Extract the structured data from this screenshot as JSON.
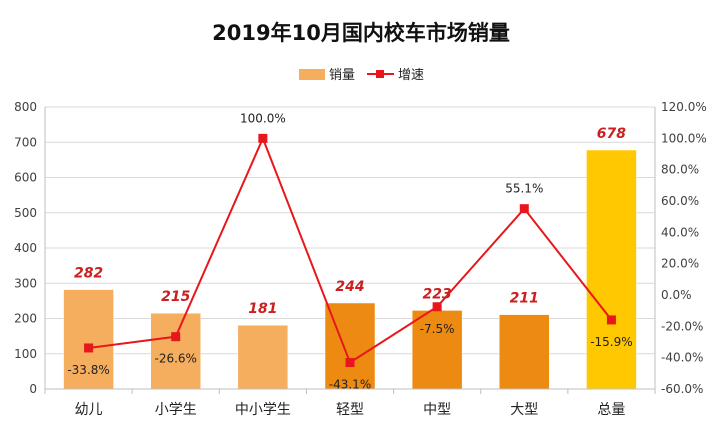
{
  "chart_data": {
    "type": "bar",
    "title": "2019年10月国内校车市场销量",
    "categories": [
      "幼儿",
      "小学生",
      "中小学生",
      "轻型",
      "中型",
      "大型",
      "总量"
    ],
    "series": [
      {
        "name": "销量",
        "type": "bar",
        "axis": "left",
        "values": [
          282,
          215,
          181,
          244,
          223,
          211,
          678
        ],
        "labels": [
          "282",
          "215",
          "181",
          "244",
          "223",
          "211",
          "678"
        ]
      },
      {
        "name": "增速",
        "type": "line",
        "axis": "right",
        "values": [
          -33.8,
          -26.6,
          100.0,
          -43.1,
          -7.5,
          55.1,
          -15.9
        ],
        "labels": [
          "-33.8%",
          "-26.6%",
          "100.0%",
          "-43.1%",
          "-7.5%",
          "55.1%",
          "-15.9%"
        ]
      }
    ],
    "y_left": {
      "min": 0,
      "max": 800,
      "ticks": [
        "0",
        "100",
        "200",
        "300",
        "400",
        "500",
        "600",
        "700",
        "800"
      ]
    },
    "y_right": {
      "min": -60,
      "max": 120,
      "ticks": [
        "-60.0%",
        "-40.0%",
        "-20.0%",
        "0.0%",
        "20.0%",
        "40.0%",
        "60.0%",
        "80.0%",
        "100.0%",
        "120.0%"
      ]
    },
    "legend_position": "top-center",
    "gridlines": true,
    "colors": {
      "bar_group_1": "#f5ad5e",
      "bar_group_2": "#ed8a12",
      "bar_total": "#ffc800",
      "line": "#e8171c",
      "bar_label": "#cc1f1f",
      "grid": "#d9d9d9",
      "axis_text": "#404040"
    },
    "bar_color_keys": [
      "bar_group_1",
      "bar_group_1",
      "bar_group_1",
      "bar_group_2",
      "bar_group_2",
      "bar_group_2",
      "bar_total"
    ]
  }
}
